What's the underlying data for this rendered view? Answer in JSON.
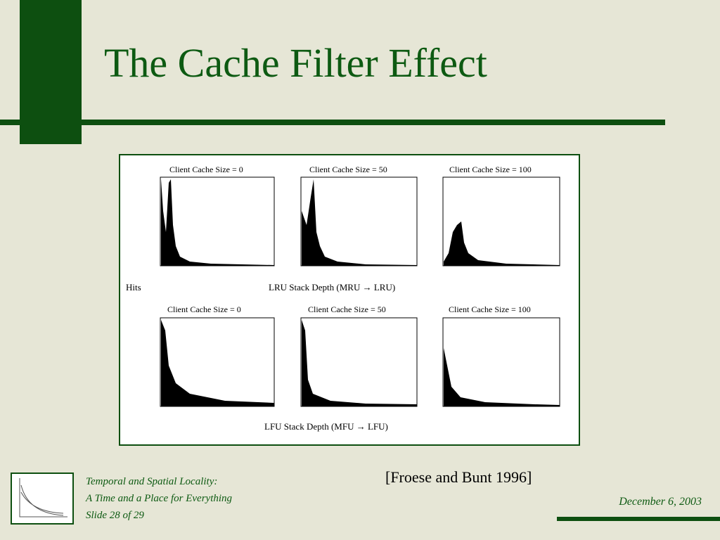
{
  "header": {
    "title": "The Cache Filter Effect"
  },
  "figure": {
    "y_label": "Hits",
    "top_row": {
      "panel_titles": [
        "Client Cache Size = 0",
        "Client Cache Size = 50",
        "Client Cache Size = 100"
      ],
      "x_label": "LRU Stack Depth (MRU → LRU)"
    },
    "bottom_row": {
      "panel_titles": [
        "Client Cache Size = 0",
        "Client Cache Size = 50",
        "Client Cache Size = 100"
      ],
      "x_label": "LFU Stack Depth (MFU → LFU)"
    }
  },
  "citation": "[Froese and Bunt 1996]",
  "footer": {
    "lines": [
      "Temporal and Spatial Locality:",
      "A Time and a Place for Everything",
      "Slide 28 of 29"
    ],
    "date": "December 6, 2003"
  }
}
